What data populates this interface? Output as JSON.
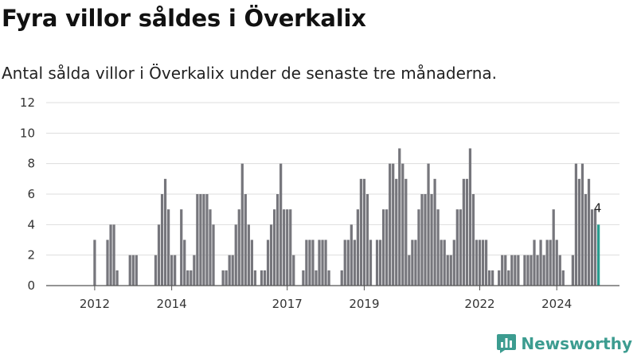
{
  "title": "Fyra villor såldes i Överkalix",
  "subtitle": "Antal sålda villor i Överkalix under de senaste tre månaderna.",
  "brand": {
    "name": "Newsworthy",
    "logo_icon": "newsworthy-logo-icon"
  },
  "colors": {
    "bar": "#76767c",
    "highlight": "#2a9d8f",
    "grid": "#dddddd",
    "axis": "#555555"
  },
  "chart_data": {
    "type": "bar",
    "title": "Fyra villor såldes i Överkalix",
    "subtitle": "Antal sålda villor i Överkalix under de senaste tre månaderna.",
    "xlabel": "",
    "ylabel": "",
    "ylim": [
      0,
      12
    ],
    "y_ticks": [
      0,
      2,
      4,
      6,
      8,
      10,
      12
    ],
    "x_ticks": [
      {
        "label": "2012",
        "index": 7
      },
      {
        "label": "2014",
        "index": 31
      },
      {
        "label": "2017",
        "index": 67
      },
      {
        "label": "2019",
        "index": 91
      },
      {
        "label": "2022",
        "index": 127
      },
      {
        "label": "2024",
        "index": 151
      }
    ],
    "grid": "horizontal",
    "highlight_last": true,
    "last_value_label": "4",
    "values": [
      0,
      0,
      0,
      0,
      0,
      0,
      0,
      3,
      0,
      0,
      0,
      3,
      4,
      4,
      1,
      0,
      0,
      0,
      2,
      2,
      2,
      0,
      0,
      0,
      0,
      0,
      2,
      4,
      6,
      7,
      5,
      2,
      2,
      0,
      5,
      3,
      1,
      1,
      2,
      6,
      6,
      6,
      6,
      5,
      4,
      0,
      0,
      1,
      1,
      2,
      2,
      4,
      5,
      8,
      6,
      4,
      3,
      1,
      0,
      1,
      1,
      3,
      4,
      5,
      6,
      8,
      5,
      5,
      5,
      2,
      0,
      0,
      1,
      3,
      3,
      3,
      1,
      3,
      3,
      3,
      1,
      0,
      0,
      0,
      1,
      3,
      3,
      4,
      3,
      5,
      7,
      7,
      6,
      3,
      0,
      3,
      3,
      5,
      5,
      8,
      8,
      7,
      9,
      8,
      7,
      2,
      3,
      3,
      5,
      6,
      6,
      8,
      6,
      7,
      5,
      3,
      3,
      2,
      2,
      3,
      5,
      5,
      7,
      7,
      9,
      6,
      3,
      3,
      3,
      3,
      1,
      1,
      0,
      1,
      2,
      2,
      1,
      2,
      2,
      2,
      0,
      2,
      2,
      2,
      3,
      2,
      3,
      2,
      3,
      3,
      5,
      3,
      2,
      1,
      0,
      0,
      2,
      8,
      7,
      8,
      6,
      7,
      5,
      5,
      4
    ]
  }
}
